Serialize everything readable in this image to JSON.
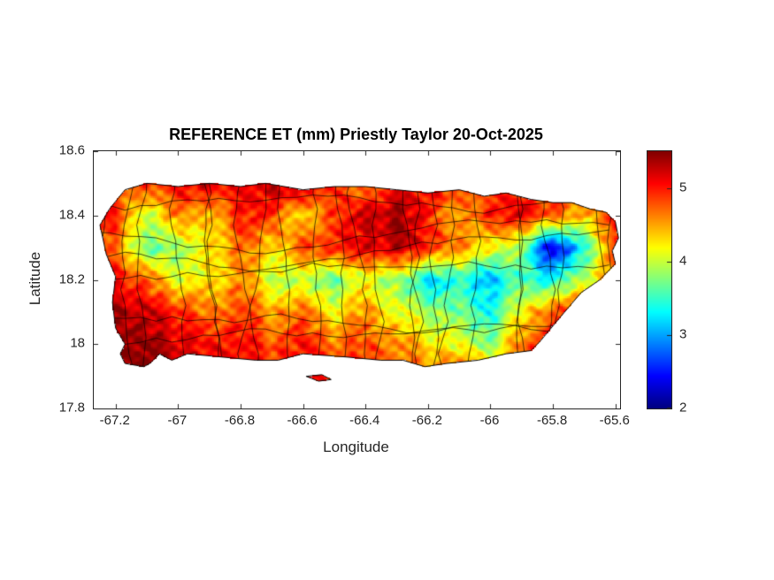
{
  "chart_data": {
    "type": "heatmap",
    "title": "REFERENCE ET (mm) Priestly Taylor 20-Oct-2025",
    "xlabel": "Longitude",
    "ylabel": "Latitude",
    "region": "Puerto Rico",
    "units": "mm",
    "grid_on": false,
    "xlim": [
      -67.27,
      -65.585
    ],
    "ylim": [
      17.8,
      18.6
    ],
    "x_ticks": [
      {
        "value": -67.2,
        "label": "-67.2"
      },
      {
        "value": -67.0,
        "label": "-67"
      },
      {
        "value": -66.8,
        "label": "-66.8"
      },
      {
        "value": -66.6,
        "label": "-66.6"
      },
      {
        "value": -66.4,
        "label": "-66.4"
      },
      {
        "value": -66.2,
        "label": "-66.2"
      },
      {
        "value": -66.0,
        "label": "-66"
      },
      {
        "value": -65.8,
        "label": "-65.8"
      },
      {
        "value": -65.6,
        "label": "-65.6"
      }
    ],
    "y_ticks": [
      {
        "value": 18.6,
        "label": "18.6"
      },
      {
        "value": 18.4,
        "label": "18.4"
      },
      {
        "value": 18.2,
        "label": "18.2"
      },
      {
        "value": 18.0,
        "label": "18"
      },
      {
        "value": 17.8,
        "label": "17.8"
      }
    ],
    "colormap": "jet",
    "colorbar": {
      "vmin": 2,
      "vmax": 5.5,
      "ticks": [
        {
          "value": 5,
          "label": "5"
        },
        {
          "value": 4,
          "label": "4"
        },
        {
          "value": 3,
          "label": "3"
        },
        {
          "value": 2,
          "label": "2"
        }
      ]
    },
    "grid": {
      "lon": [
        -67.2,
        -67.1,
        -67.0,
        -66.9,
        -66.8,
        -66.7,
        -66.6,
        -66.5,
        -66.4,
        -66.3,
        -66.2,
        -66.1,
        -66.0,
        -65.9,
        -65.8,
        -65.7,
        -65.6
      ],
      "lat": [
        18.5,
        18.4,
        18.3,
        18.2,
        18.1,
        18.0,
        17.9
      ],
      "et_mm": [
        [
          4.6,
          4.9,
          5.1,
          5.2,
          5.0,
          5.3,
          5.4,
          4.9,
          4.5,
          5.0,
          5.1,
          4.9,
          4.8,
          5.0,
          null,
          null,
          null
        ],
        [
          5.0,
          3.9,
          4.7,
          4.3,
          5.0,
          4.9,
          4.2,
          4.9,
          5.2,
          5.4,
          5.0,
          4.4,
          5.0,
          5.1,
          4.8,
          4.4,
          5.0
        ],
        [
          4.7,
          3.6,
          3.9,
          4.2,
          4.7,
          4.3,
          4.8,
          5.0,
          5.1,
          5.3,
          5.0,
          4.6,
          4.2,
          3.8,
          2.2,
          3.4,
          4.9
        ],
        [
          5.1,
          4.7,
          4.1,
          4.2,
          4.6,
          4.0,
          3.9,
          3.7,
          4.1,
          3.8,
          3.2,
          3.4,
          3.1,
          3.6,
          3.3,
          4.0,
          4.7
        ],
        [
          5.4,
          5.2,
          5.0,
          4.6,
          4.9,
          4.5,
          4.7,
          4.2,
          4.6,
          4.1,
          3.9,
          3.7,
          3.4,
          4.2,
          4.8,
          5.0,
          null
        ],
        [
          5.5,
          5.4,
          5.2,
          5.0,
          5.1,
          4.8,
          5.0,
          4.7,
          4.8,
          4.6,
          4.3,
          4.1,
          3.8,
          4.7,
          5.0,
          null,
          null
        ],
        [
          5.5,
          5.5,
          5.3,
          5.2,
          5.1,
          5.0,
          5.1,
          4.9,
          5.0,
          4.8,
          4.7,
          4.9,
          4.6,
          4.8,
          null,
          null,
          null
        ]
      ]
    },
    "outline": {
      "main": [
        [
          -67.25,
          18.37
        ],
        [
          -67.22,
          18.42
        ],
        [
          -67.17,
          18.48
        ],
        [
          -67.1,
          18.5
        ],
        [
          -67.0,
          18.49
        ],
        [
          -66.9,
          18.5
        ],
        [
          -66.8,
          18.49
        ],
        [
          -66.72,
          18.5
        ],
        [
          -66.6,
          18.48
        ],
        [
          -66.5,
          18.49
        ],
        [
          -66.4,
          18.49
        ],
        [
          -66.3,
          18.48
        ],
        [
          -66.2,
          18.47
        ],
        [
          -66.1,
          18.48
        ],
        [
          -66.02,
          18.46
        ],
        [
          -65.95,
          18.47
        ],
        [
          -65.87,
          18.45
        ],
        [
          -65.8,
          18.44
        ],
        [
          -65.74,
          18.44
        ],
        [
          -65.68,
          18.42
        ],
        [
          -65.63,
          18.41
        ],
        [
          -65.6,
          18.38
        ],
        [
          -65.59,
          18.33
        ],
        [
          -65.61,
          18.29
        ],
        [
          -65.6,
          18.25
        ],
        [
          -65.65,
          18.2
        ],
        [
          -65.71,
          18.16
        ],
        [
          -65.78,
          18.08
        ],
        [
          -65.84,
          18.01
        ],
        [
          -65.87,
          17.98
        ],
        [
          -65.95,
          17.97
        ],
        [
          -66.04,
          17.95
        ],
        [
          -66.14,
          17.94
        ],
        [
          -66.21,
          17.93
        ],
        [
          -66.28,
          17.95
        ],
        [
          -66.35,
          17.95
        ],
        [
          -66.46,
          17.96
        ],
        [
          -66.6,
          17.97
        ],
        [
          -66.68,
          17.95
        ],
        [
          -66.75,
          17.95
        ],
        [
          -66.86,
          17.96
        ],
        [
          -66.97,
          17.97
        ],
        [
          -67.02,
          17.95
        ],
        [
          -67.06,
          17.97
        ],
        [
          -67.09,
          17.94
        ],
        [
          -67.11,
          17.93
        ],
        [
          -67.17,
          17.94
        ],
        [
          -67.185,
          17.97
        ],
        [
          -67.17,
          18.0
        ],
        [
          -67.2,
          18.05
        ],
        [
          -67.21,
          18.13
        ],
        [
          -67.2,
          18.21
        ],
        [
          -67.23,
          18.28
        ]
      ],
      "islets": [
        [
          [
            -66.59,
            17.9
          ],
          [
            -66.55,
            17.885
          ],
          [
            -66.51,
            17.89
          ],
          [
            -66.54,
            17.905
          ]
        ]
      ]
    }
  }
}
